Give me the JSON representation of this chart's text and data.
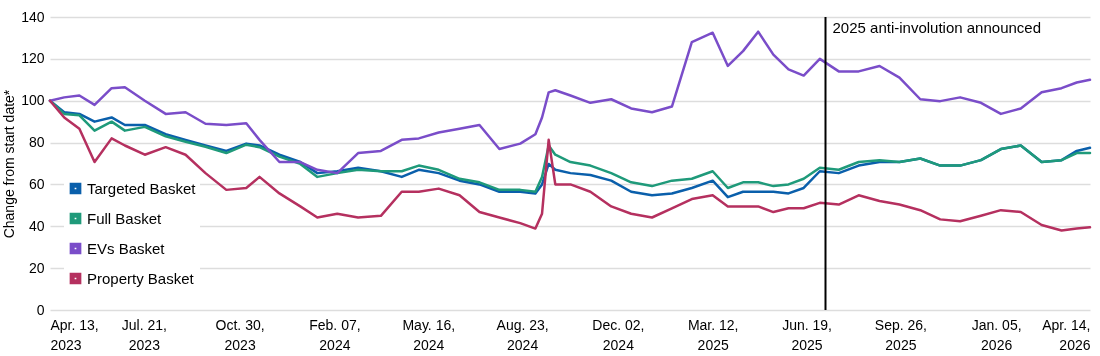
{
  "chart_data": {
    "type": "line",
    "ylabel": "Change from start date*",
    "x": [
      "2023-04-13",
      "2023-04-28",
      "2023-05-14",
      "2023-05-30",
      "2023-06-17",
      "2023-07-01",
      "2023-07-22",
      "2023-08-13",
      "2023-09-03",
      "2023-09-24",
      "2023-10-16",
      "2023-11-06",
      "2023-11-20",
      "2023-12-11",
      "2024-01-02",
      "2024-01-20",
      "2024-02-10",
      "2024-03-03",
      "2024-03-27",
      "2024-04-18",
      "2024-05-06",
      "2024-05-27",
      "2024-06-18",
      "2024-07-09",
      "2024-07-30",
      "2024-08-21",
      "2024-09-06",
      "2024-09-13",
      "2024-09-20",
      "2024-09-27",
      "2024-10-13",
      "2024-11-03",
      "2024-11-25",
      "2024-12-16",
      "2025-01-07",
      "2025-01-28",
      "2025-02-18",
      "2025-03-12",
      "2025-03-28",
      "2025-04-13",
      "2025-04-29",
      "2025-05-15",
      "2025-05-31",
      "2025-06-16",
      "2025-07-03",
      "2025-07-23",
      "2025-08-13",
      "2025-09-04",
      "2025-09-25",
      "2025-10-17",
      "2025-11-07",
      "2025-11-28",
      "2025-12-20",
      "2026-01-10",
      "2026-01-31",
      "2026-02-22",
      "2026-03-15",
      "2026-03-31",
      "2026-04-14"
    ],
    "series": [
      {
        "name": "Targeted Basket",
        "color": "#0a5fab",
        "values": [
          100,
          94.5,
          93.7,
          90,
          92,
          88.4,
          88.4,
          84,
          81.3,
          78.6,
          76,
          79.5,
          78.6,
          74.2,
          70.7,
          65.4,
          66.3,
          68,
          66.3,
          63.6,
          67,
          65.4,
          61.8,
          60,
          56.5,
          56.5,
          55.7,
          60,
          69.8,
          67,
          65.4,
          64.5,
          61.8,
          56.5,
          54.8,
          55.7,
          58.3,
          61.8,
          53.9,
          56.5,
          56.5,
          56.5,
          55.7,
          58.3,
          66.3,
          65.4,
          69,
          70.7,
          70.7,
          72.4,
          69,
          69,
          71.6,
          76.9,
          78.6,
          70.7,
          71.6,
          76,
          77.5
        ]
      },
      {
        "name": "Full Basket",
        "color": "#1f9a7a",
        "values": [
          100,
          93.7,
          93,
          85.7,
          90,
          85.7,
          87.5,
          83,
          80.4,
          78,
          75,
          79,
          77.8,
          73.3,
          69.8,
          63.6,
          65.4,
          67,
          66.3,
          66.3,
          69,
          67,
          62.7,
          61,
          57.4,
          57.4,
          56.5,
          63.6,
          78.6,
          74.2,
          70.7,
          69,
          65.4,
          61,
          59.2,
          61.8,
          62.7,
          66.3,
          58.3,
          61,
          61,
          59.2,
          60,
          62.7,
          68,
          67,
          70.7,
          71.6,
          70.7,
          72.4,
          69,
          69,
          71.6,
          76.9,
          78.6,
          70.7,
          71.6,
          75,
          75
        ]
      },
      {
        "name": "EVs Basket",
        "color": "#7a4dc9",
        "values": [
          100,
          101.6,
          102.5,
          98,
          106,
          106.4,
          100,
          93.7,
          94.5,
          89,
          88.4,
          89.2,
          81.3,
          70.7,
          70.7,
          67,
          65.4,
          75,
          76,
          81.3,
          82,
          84.8,
          86.6,
          88.4,
          76.9,
          79.5,
          84,
          92,
          104,
          105,
          102.5,
          99,
          100.7,
          96.3,
          94.5,
          97.2,
          128,
          132.5,
          116.6,
          123.7,
          133,
          122,
          115,
          112,
          120,
          114,
          114,
          116.6,
          111,
          100.7,
          99.8,
          101.6,
          99,
          93.7,
          96.3,
          104,
          106,
          108.7,
          110
        ]
      },
      {
        "name": "Property Basket",
        "color": "#b5305f",
        "values": [
          100,
          92,
          86.6,
          70.7,
          82,
          78.6,
          74.2,
          77.8,
          74.2,
          65.4,
          57.4,
          58.3,
          63.6,
          55.7,
          49.5,
          44.2,
          46,
          44.2,
          45,
          56.5,
          56.5,
          58,
          54.8,
          46.8,
          44.2,
          41.5,
          38.9,
          46,
          81.3,
          60,
          60,
          56.5,
          49.5,
          46,
          44.2,
          48.6,
          53,
          54.8,
          49.5,
          49.5,
          49.5,
          46.8,
          48.6,
          48.6,
          51.2,
          50.4,
          54.8,
          52.1,
          50.4,
          47.7,
          43.3,
          42.4,
          45,
          47.7,
          46.8,
          40.6,
          38,
          38.9,
          39.5
        ]
      }
    ],
    "xlim": [
      "2023-04-13",
      "2026-04-14"
    ],
    "xticks": [
      {
        "value": "2023-04-13",
        "label": "Apr. 13, 2023"
      },
      {
        "value": "2023-07-21",
        "label": "Jul. 21, 2023"
      },
      {
        "value": "2023-10-30",
        "label": "Oct. 30, 2023"
      },
      {
        "value": "2024-02-07",
        "label": "Feb. 07, 2024"
      },
      {
        "value": "2024-05-16",
        "label": "May. 16, 2024"
      },
      {
        "value": "2024-08-23",
        "label": "Aug. 23, 2024"
      },
      {
        "value": "2024-12-02",
        "label": "Dec. 02, 2024"
      },
      {
        "value": "2025-03-12",
        "label": "Mar. 12, 2025"
      },
      {
        "value": "2025-06-19",
        "label": "Jun. 19, 2025"
      },
      {
        "value": "2025-09-26",
        "label": "Sep. 26, 2025"
      },
      {
        "value": "2026-01-05",
        "label": "Jan. 05, 2026"
      },
      {
        "value": "2026-04-14",
        "label": "Apr. 14, 2026"
      }
    ],
    "ylim": [
      0,
      140
    ],
    "yticks": [
      0,
      20,
      40,
      60,
      80,
      100,
      120,
      140
    ],
    "grid": "y",
    "legend": "bottom left",
    "line_style": "solid",
    "ref_lines": [
      {
        "axis": "x",
        "value": "2025-07-09",
        "label": "2025 anti-involution announced",
        "color": "#000000"
      }
    ]
  }
}
